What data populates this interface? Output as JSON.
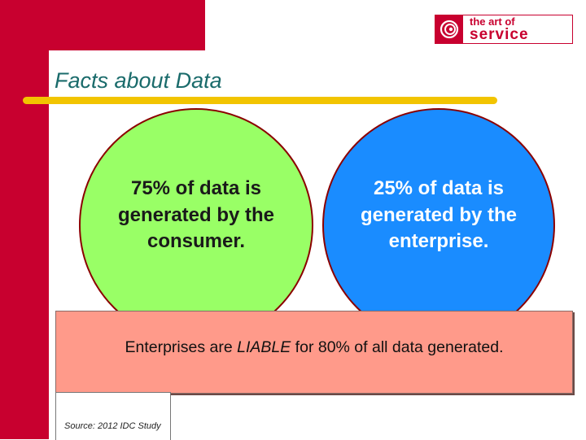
{
  "logo": {
    "line1": "the art of",
    "line2": "service",
    "icon": "swirl-logo-icon"
  },
  "slide": {
    "title": "Facts about Data"
  },
  "circles": {
    "left_text": "75% of data is generated by the consumer.",
    "right_text": "25% of data is generated by the enterprise."
  },
  "banner": {
    "prefix": "Enterprises are ",
    "emphasis": "LIABLE",
    "suffix": " for 80% of all data generated."
  },
  "source": "Source: 2012 IDC Study",
  "colors": {
    "brand_red": "#c8002f",
    "title_teal": "#1a6b6b",
    "underline_yellow": "#f2c400",
    "consumer_green": "#99ff66",
    "enterprise_blue": "#1a8cff",
    "banner_salmon": "#ff9a8a"
  }
}
